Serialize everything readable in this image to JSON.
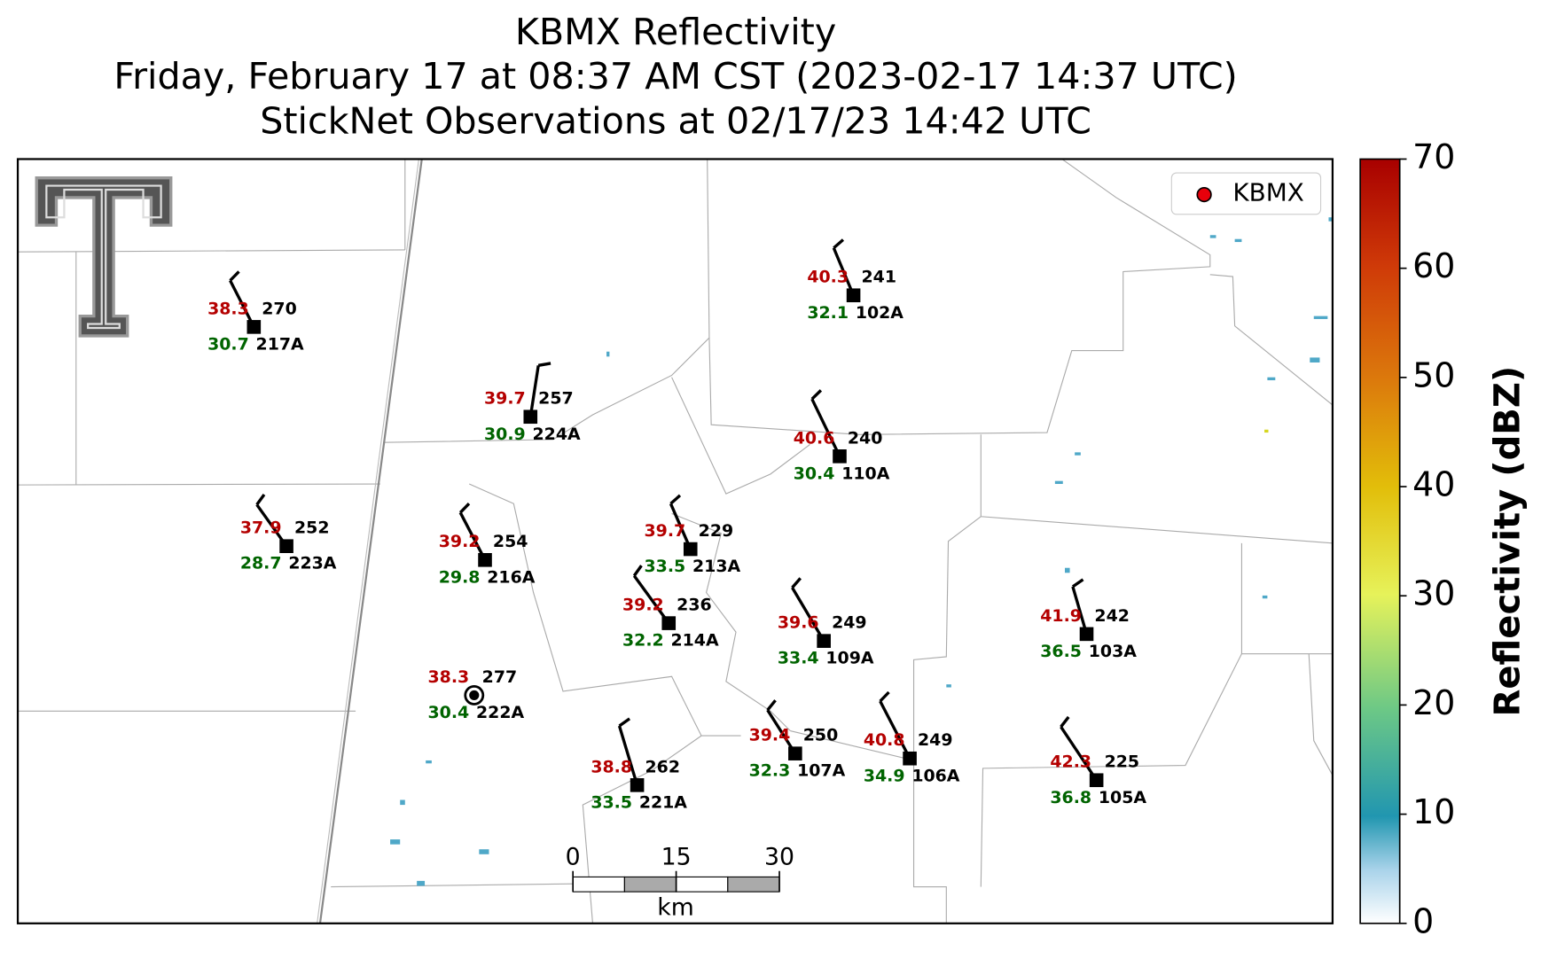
{
  "title": [
    "KBMX Reflectivity",
    "Friday, February 17 at 08:37 AM CST (2023-02-17 14:37 UTC)",
    "StickNet Observations at 02/17/23 14:42 UTC"
  ],
  "legend": "KBMX",
  "stations": [
    {
      "id": "217A",
      "temperature": 38.3,
      "value": 270,
      "dewpoint": 30.7
    },
    {
      "id": "224A",
      "temperature": 39.7,
      "value": 257,
      "dewpoint": 30.9
    },
    {
      "id": "223A",
      "temperature": 37.9,
      "value": 252,
      "dewpoint": 28.7
    },
    {
      "id": "216A",
      "temperature": 39.2,
      "value": 254,
      "dewpoint": 29.8
    },
    {
      "id": "213A",
      "temperature": 39.7,
      "value": 229,
      "dewpoint": 33.5
    },
    {
      "id": "214A",
      "temperature": 39.2,
      "value": 236,
      "dewpoint": 32.2
    },
    {
      "id": "222A",
      "temperature": 38.3,
      "value": 277,
      "dewpoint": 30.4
    },
    {
      "id": "221A",
      "temperature": 38.8,
      "value": 262,
      "dewpoint": 33.5
    },
    {
      "id": "107A",
      "temperature": 39.4,
      "value": 250,
      "dewpoint": 32.3
    },
    {
      "id": "106A",
      "temperature": 40.8,
      "value": 249,
      "dewpoint": 34.9
    },
    {
      "id": "109A",
      "temperature": 39.6,
      "value": 249,
      "dewpoint": 33.4
    },
    {
      "id": "110A",
      "temperature": 40.6,
      "value": 240,
      "dewpoint": 30.4
    },
    {
      "id": "102A",
      "temperature": 40.3,
      "value": 241,
      "dewpoint": 32.1
    },
    {
      "id": "103A",
      "temperature": 41.9,
      "value": 242,
      "dewpoint": 36.5
    },
    {
      "id": "105A",
      "temperature": 42.3,
      "value": 225,
      "dewpoint": 36.8
    }
  ],
  "colorbar": {
    "label": "Reflectivity (dBZ)",
    "lim": [
      0,
      70
    ],
    "ticks": [
      0,
      10,
      20,
      30,
      40,
      50,
      60,
      70
    ]
  },
  "scale_bar": {
    "unit": "km",
    "lim": [
      0,
      30
    ],
    "ticks": [
      0,
      15,
      30
    ]
  }
}
